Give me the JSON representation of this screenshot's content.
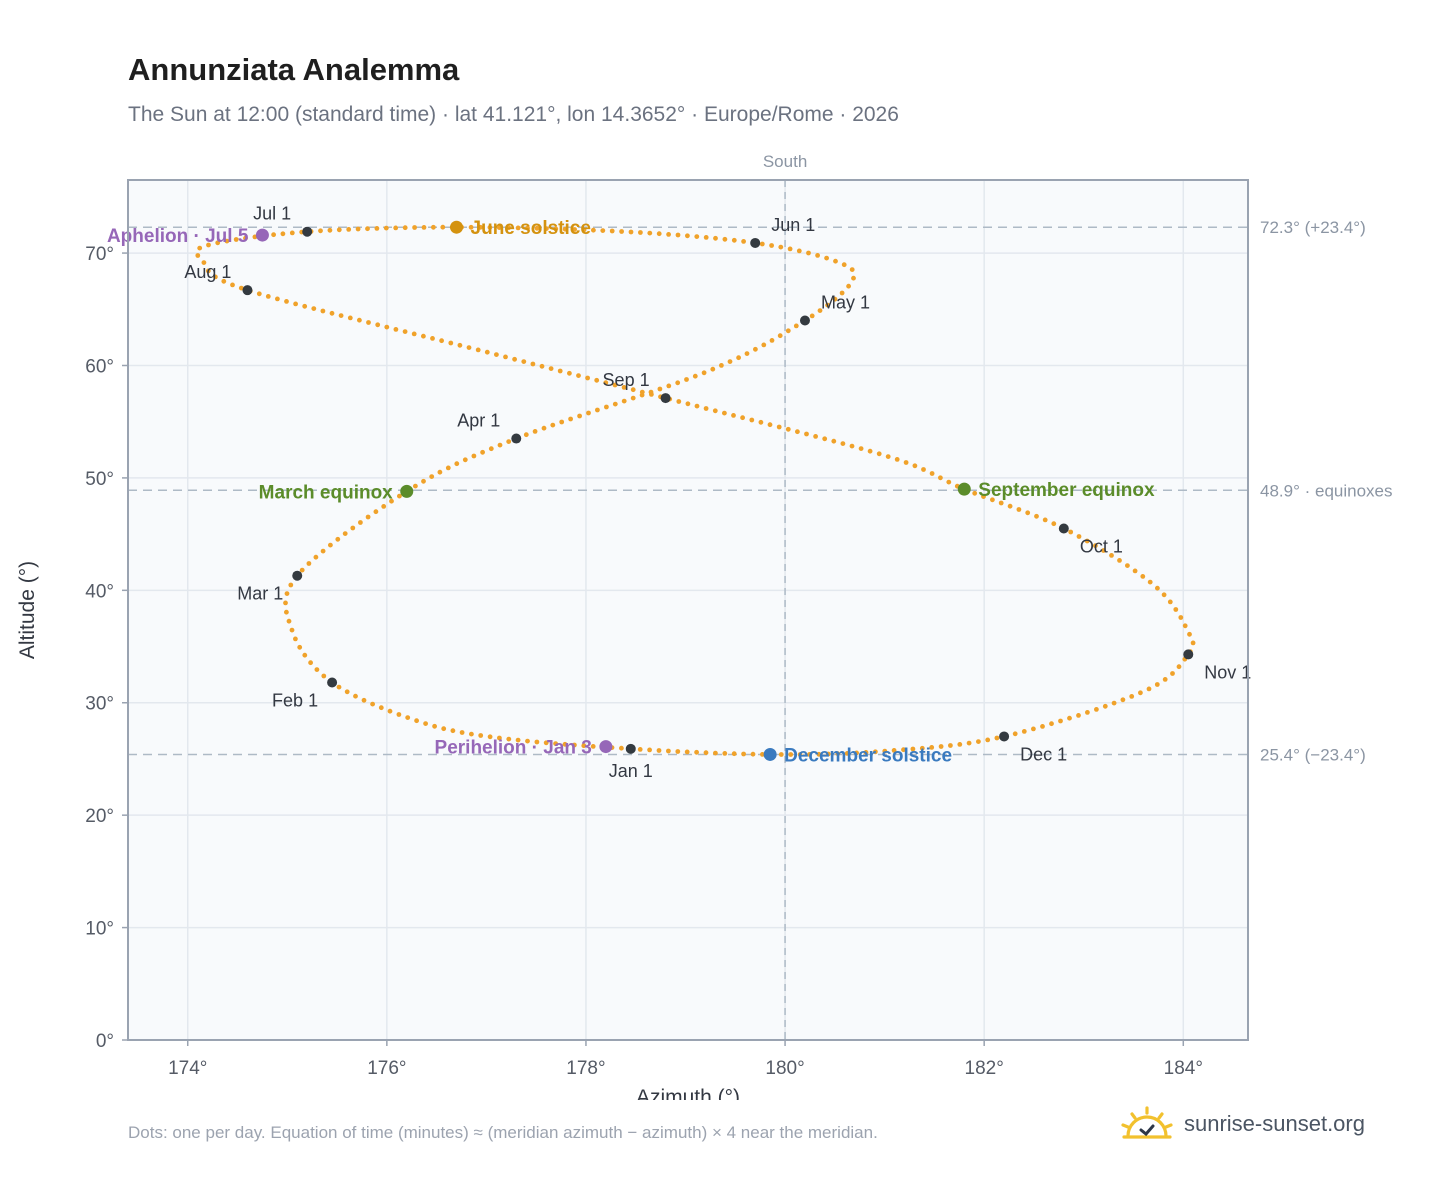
{
  "header": {
    "title": "Annunziata Analemma",
    "subtitle": "The Sun at 12:00 (standard time) · lat 41.121°, lon 14.3652° · Europe/Rome · 2026"
  },
  "footer": {
    "note": "Dots: one per day. Equation of time (minutes) ≈ (meridian azimuth − azimuth) × 4 near the meridian.",
    "brand": "sunrise-sunset.org"
  },
  "colors": {
    "path": "#f0a22a",
    "month_marker": "#343a40",
    "solstice_june": "#d4920f",
    "solstice_december": "#3a7abf",
    "equinox": "#5b8c2a",
    "apsis": "#9667b8",
    "plot_bg": "#f8fafc",
    "grid": "#e3e8ee",
    "axis": "#9aa3b1",
    "ref_line": "#aebac6",
    "logo": "#f2c12e"
  },
  "chart_data": {
    "type": "scatter",
    "title": "Annunziata Analemma",
    "xlabel": "Azimuth (°)",
    "ylabel": "Altitude (°)",
    "xlim": [
      173.4,
      184.65
    ],
    "ylim": [
      0,
      76.5
    ],
    "x_ticks": [
      174,
      176,
      178,
      180,
      182,
      184
    ],
    "x_tick_labels": [
      "174°",
      "176°",
      "178°",
      "180°",
      "182°",
      "184°"
    ],
    "y_ticks": [
      0,
      10,
      20,
      30,
      40,
      50,
      60,
      70
    ],
    "y_tick_labels": [
      "0°",
      "10°",
      "20°",
      "30°",
      "40°",
      "50°",
      "60°",
      "70°"
    ],
    "grid": true,
    "meridian": {
      "x": 180,
      "label": "South"
    },
    "reference_lines": [
      {
        "y": 72.3,
        "label": "72.3° (+23.4°)"
      },
      {
        "y": 48.9,
        "label": "48.9° · equinoxes"
      },
      {
        "y": 25.4,
        "label": "25.4° (−23.4°)"
      }
    ],
    "path_points": [
      {
        "x": 178.45,
        "y": 25.9
      },
      {
        "x": 177.1,
        "y": 26.9
      },
      {
        "x": 176.3,
        "y": 28.4
      },
      {
        "x": 175.45,
        "y": 31.8
      },
      {
        "x": 175.05,
        "y": 36.4
      },
      {
        "x": 175.1,
        "y": 41.3
      },
      {
        "x": 176.2,
        "y": 48.8
      },
      {
        "x": 177.3,
        "y": 53.5
      },
      {
        "x": 179.2,
        "y": 59.4
      },
      {
        "x": 180.2,
        "y": 64.0
      },
      {
        "x": 180.68,
        "y": 67.6
      },
      {
        "x": 180.5,
        "y": 69.3
      },
      {
        "x": 179.7,
        "y": 70.9
      },
      {
        "x": 178.4,
        "y": 71.9
      },
      {
        "x": 176.7,
        "y": 72.3
      },
      {
        "x": 175.2,
        "y": 71.9
      },
      {
        "x": 174.2,
        "y": 70.7
      },
      {
        "x": 174.15,
        "y": 69.3
      },
      {
        "x": 174.6,
        "y": 66.7
      },
      {
        "x": 177.0,
        "y": 61.2
      },
      {
        "x": 178.8,
        "y": 57.1
      },
      {
        "x": 181.0,
        "y": 52.0
      },
      {
        "x": 181.8,
        "y": 49.0
      },
      {
        "x": 182.8,
        "y": 45.5
      },
      {
        "x": 183.7,
        "y": 40.5
      },
      {
        "x": 184.05,
        "y": 36.3
      },
      {
        "x": 184.05,
        "y": 34.3
      },
      {
        "x": 183.6,
        "y": 31.0
      },
      {
        "x": 182.2,
        "y": 27.0
      },
      {
        "x": 181.0,
        "y": 25.7
      },
      {
        "x": 179.85,
        "y": 25.4
      },
      {
        "x": 178.45,
        "y": 25.9
      }
    ],
    "month_markers": [
      {
        "label": "Jan 1",
        "x": 178.45,
        "y": 25.9,
        "pos": "below"
      },
      {
        "label": "Feb 1",
        "x": 175.45,
        "y": 31.8,
        "pos": "below-left"
      },
      {
        "label": "Mar 1",
        "x": 175.1,
        "y": 41.3,
        "pos": "below-left"
      },
      {
        "label": "Apr 1",
        "x": 177.3,
        "y": 53.5,
        "pos": "above-left"
      },
      {
        "label": "May 1",
        "x": 180.2,
        "y": 64.0,
        "pos": "above-right"
      },
      {
        "label": "Jun 1",
        "x": 179.7,
        "y": 70.9,
        "pos": "above-right"
      },
      {
        "label": "Jul 1",
        "x": 175.2,
        "y": 71.9,
        "pos": "above-left"
      },
      {
        "label": "Aug 1",
        "x": 174.6,
        "y": 66.7,
        "pos": "above-left"
      },
      {
        "label": "Sep 1",
        "x": 178.8,
        "y": 57.1,
        "pos": "above-left"
      },
      {
        "label": "Oct 1",
        "x": 182.8,
        "y": 45.5,
        "pos": "below-right"
      },
      {
        "label": "Nov 1",
        "x": 184.05,
        "y": 34.3,
        "pos": "below-right"
      },
      {
        "label": "Dec 1",
        "x": 182.2,
        "y": 27.0,
        "pos": "below-right"
      }
    ],
    "events": [
      {
        "label": "June solstice",
        "x": 176.7,
        "y": 72.3,
        "color_key": "solstice_june",
        "side": "right"
      },
      {
        "label": "December solstice",
        "x": 179.85,
        "y": 25.4,
        "color_key": "solstice_december",
        "side": "right"
      },
      {
        "label": "March equinox",
        "x": 176.2,
        "y": 48.8,
        "color_key": "equinox",
        "side": "left"
      },
      {
        "label": "September equinox",
        "x": 181.8,
        "y": 49.0,
        "color_key": "equinox",
        "side": "right"
      },
      {
        "label": "Aphelion · Jul 5",
        "x": 174.75,
        "y": 71.6,
        "color_key": "apsis",
        "side": "left"
      },
      {
        "label": "Perihelion · Jan 3",
        "x": 178.2,
        "y": 26.1,
        "color_key": "apsis",
        "side": "left"
      }
    ]
  }
}
